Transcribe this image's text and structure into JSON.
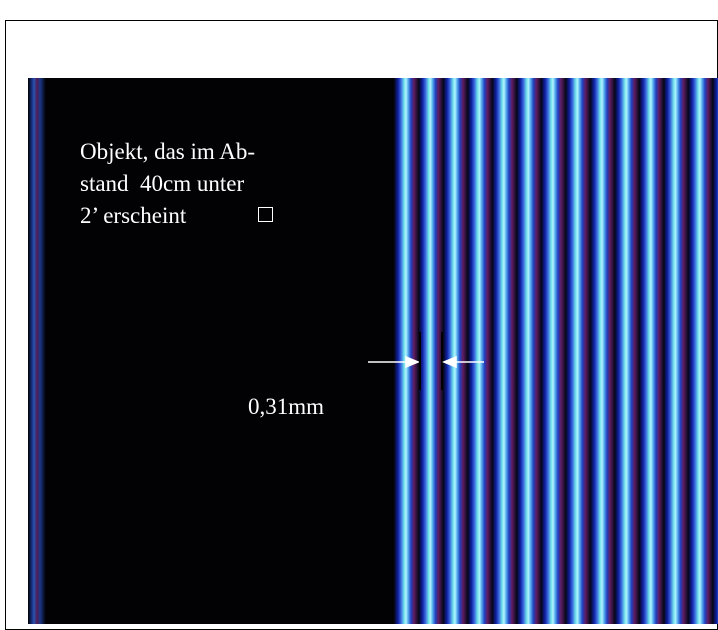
{
  "caption": {
    "lines": [
      "Objekt, das im Ab-",
      "stand  40cm unter",
      "2’ erscheint"
    ]
  },
  "measure": {
    "label": "0,31mm"
  }
}
